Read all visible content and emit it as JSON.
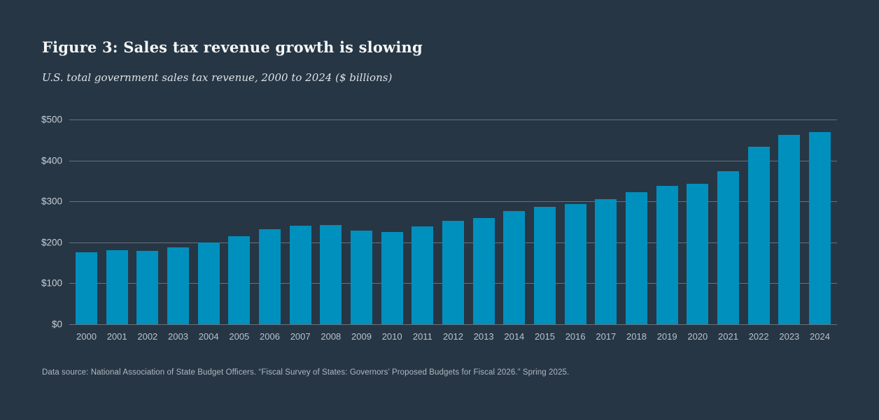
{
  "figure": {
    "title": "Figure 3: Sales tax revenue growth is slowing",
    "subtitle": "U.S. total government sales tax revenue, 2000 to 2024 ($ billions)",
    "source_note": "Data source: National Association of State Budget Officers. “Fiscal Survey of States: Governors’ Proposed Budgets for Fiscal 2026.” Spring 2025."
  },
  "chart_data": {
    "type": "bar",
    "title": "Figure 3: Sales tax revenue growth is slowing",
    "subtitle": "U.S. total government sales tax revenue, 2000 to 2024 ($ billions)",
    "categories": [
      "2000",
      "2001",
      "2002",
      "2003",
      "2004",
      "2005",
      "2006",
      "2007",
      "2008",
      "2009",
      "2010",
      "2011",
      "2012",
      "2013",
      "2014",
      "2015",
      "2016",
      "2017",
      "2018",
      "2019",
      "2020",
      "2021",
      "2022",
      "2023",
      "2024"
    ],
    "values": [
      175,
      181,
      180,
      187,
      200,
      215,
      232,
      240,
      242,
      229,
      226,
      239,
      252,
      260,
      276,
      287,
      294,
      306,
      323,
      338,
      343,
      374,
      434,
      462,
      469
    ],
    "xlabel": "",
    "ylabel": "",
    "ylim": [
      0,
      500
    ],
    "y_ticks": [
      "$0",
      "$100",
      "$200",
      "$300",
      "$400",
      "$500"
    ],
    "grid": true,
    "legend": "none",
    "bar_color": "#0090be",
    "background_color": "#273644",
    "gridline_color": "rgba(186,198,209,0.42)"
  }
}
